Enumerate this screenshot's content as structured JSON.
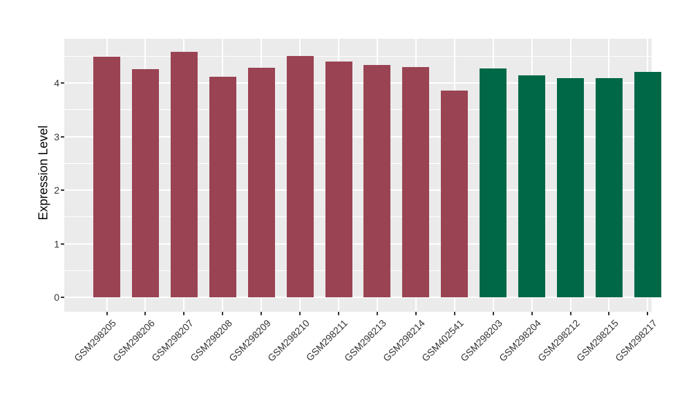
{
  "figure": {
    "ylabel": "Expression Level"
  },
  "chart_data": {
    "type": "bar",
    "title": "",
    "xlabel": "",
    "ylabel": "Expression Level",
    "categories": [
      "GSM298205",
      "GSM298206",
      "GSM298207",
      "GSM298208",
      "GSM298209",
      "GSM298210",
      "GSM298211",
      "GSM298213",
      "GSM298214",
      "GSM402541",
      "GSM298203",
      "GSM298204",
      "GSM298212",
      "GSM298215",
      "GSM298217"
    ],
    "values": [
      4.49,
      4.26,
      4.58,
      4.11,
      4.29,
      4.5,
      4.4,
      4.34,
      4.3,
      3.86,
      4.27,
      4.14,
      4.09,
      4.09,
      4.21
    ],
    "bar_colors": [
      "#9A4352",
      "#9A4352",
      "#9A4352",
      "#9A4352",
      "#9A4352",
      "#9A4352",
      "#9A4352",
      "#9A4352",
      "#9A4352",
      "#9A4352",
      "#006847",
      "#006847",
      "#006847",
      "#006847",
      "#006847"
    ],
    "group_colors": {
      "group1": "#9A4352",
      "group2": "#006847"
    },
    "group_membership": [
      "group1",
      "group1",
      "group1",
      "group1",
      "group1",
      "group1",
      "group1",
      "group1",
      "group1",
      "group1",
      "group2",
      "group2",
      "group2",
      "group2",
      "group2"
    ],
    "ytick_labels": [
      "0",
      "1",
      "2",
      "3",
      "4"
    ],
    "ytick_values": [
      0,
      1,
      2,
      3,
      4
    ],
    "ylim": [
      0,
      4.83
    ],
    "grid": "on",
    "legend": "none",
    "panel_background": "#EBEBEB",
    "gridline_color": "#FFFFFF",
    "bar_width_fraction": 0.7
  }
}
